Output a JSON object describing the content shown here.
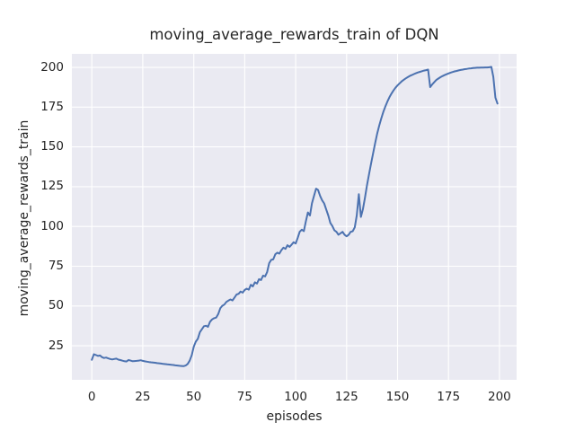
{
  "figure": {
    "background": "#ffffff"
  },
  "chart_data": {
    "type": "line",
    "title": "moving_average_rewards_train of DQN",
    "xlabel": "episodes",
    "ylabel": "moving_average_rewards_train",
    "legend": "none",
    "grid": true,
    "plot_bg": "#eaeaf2",
    "grid_color": "#ffffff",
    "line_color": "#4c72b0",
    "text_color": "#262626",
    "line_width": 2,
    "xlim": [
      -9.8,
      208.4
    ],
    "ylim": [
      3.6,
      208.5
    ],
    "xticks": [
      0,
      25,
      50,
      75,
      100,
      125,
      150,
      175,
      200
    ],
    "yticks": [
      25,
      50,
      75,
      100,
      125,
      150,
      175,
      200
    ],
    "series": [
      {
        "name": "moving_average_rewards_train",
        "points": [
          [
            0,
            16.2
          ],
          [
            1,
            19.7
          ],
          [
            2,
            19.2
          ],
          [
            3,
            18.6
          ],
          [
            4,
            18.9
          ],
          [
            5,
            17.8
          ],
          [
            6,
            17.3
          ],
          [
            7,
            17.6
          ],
          [
            8,
            17.1
          ],
          [
            9,
            16.7
          ],
          [
            10,
            16.4
          ],
          [
            11,
            16.7
          ],
          [
            12,
            16.9
          ],
          [
            13,
            16.3
          ],
          [
            14,
            16.0
          ],
          [
            15,
            15.6
          ],
          [
            16,
            15.3
          ],
          [
            17,
            15.1
          ],
          [
            18,
            16.1
          ],
          [
            19,
            15.7
          ],
          [
            20,
            15.3
          ],
          [
            21,
            15.4
          ],
          [
            22,
            15.5
          ],
          [
            23,
            15.7
          ],
          [
            24,
            15.9
          ],
          [
            25,
            15.5
          ],
          [
            26,
            15.2
          ],
          [
            27,
            15.0
          ],
          [
            28,
            14.8
          ],
          [
            29,
            14.6
          ],
          [
            30,
            14.5
          ],
          [
            31,
            14.3
          ],
          [
            32,
            14.1
          ],
          [
            33,
            14.0
          ],
          [
            34,
            13.8
          ],
          [
            35,
            13.6
          ],
          [
            36,
            13.5
          ],
          [
            37,
            13.3
          ],
          [
            38,
            13.2
          ],
          [
            39,
            13.0
          ],
          [
            40,
            12.9
          ],
          [
            41,
            12.7
          ],
          [
            42,
            12.6
          ],
          [
            43,
            12.4
          ],
          [
            44,
            12.3
          ],
          [
            45,
            12.2
          ],
          [
            46,
            12.6
          ],
          [
            47,
            13.6
          ],
          [
            48,
            15.6
          ],
          [
            49,
            19.0
          ],
          [
            50,
            24.5
          ],
          [
            51,
            27.6
          ],
          [
            52,
            29.4
          ],
          [
            53,
            33.6
          ],
          [
            54,
            35.4
          ],
          [
            55,
            37.3
          ],
          [
            56,
            37.6
          ],
          [
            57,
            36.9
          ],
          [
            58,
            40.1
          ],
          [
            59,
            41.6
          ],
          [
            60,
            42.3
          ],
          [
            61,
            42.7
          ],
          [
            62,
            44.9
          ],
          [
            63,
            48.6
          ],
          [
            64,
            50.1
          ],
          [
            65,
            50.9
          ],
          [
            66,
            52.6
          ],
          [
            67,
            53.4
          ],
          [
            68,
            54.1
          ],
          [
            69,
            53.5
          ],
          [
            70,
            55.3
          ],
          [
            71,
            57.2
          ],
          [
            72,
            57.7
          ],
          [
            73,
            59.1
          ],
          [
            74,
            58.4
          ],
          [
            75,
            60.1
          ],
          [
            76,
            60.9
          ],
          [
            77,
            60.3
          ],
          [
            78,
            63.4
          ],
          [
            79,
            62.3
          ],
          [
            80,
            64.9
          ],
          [
            81,
            64.1
          ],
          [
            82,
            66.9
          ],
          [
            83,
            66.3
          ],
          [
            84,
            69.1
          ],
          [
            85,
            68.6
          ],
          [
            86,
            71.3
          ],
          [
            87,
            76.9
          ],
          [
            88,
            79.0
          ],
          [
            89,
            79.3
          ],
          [
            90,
            82.5
          ],
          [
            91,
            83.5
          ],
          [
            92,
            82.9
          ],
          [
            93,
            85.1
          ],
          [
            94,
            86.7
          ],
          [
            95,
            85.9
          ],
          [
            96,
            88.2
          ],
          [
            97,
            87.2
          ],
          [
            98,
            88.6
          ],
          [
            99,
            90.1
          ],
          [
            100,
            89.3
          ],
          [
            101,
            92.9
          ],
          [
            102,
            96.7
          ],
          [
            103,
            98.0
          ],
          [
            104,
            97.1
          ],
          [
            105,
            103.1
          ],
          [
            106,
            108.8
          ],
          [
            107,
            106.9
          ],
          [
            108,
            114.5
          ],
          [
            109,
            119.2
          ],
          [
            110,
            123.8
          ],
          [
            111,
            122.9
          ],
          [
            112,
            119.2
          ],
          [
            113,
            116.4
          ],
          [
            114,
            114.5
          ],
          [
            115,
            110.7
          ],
          [
            116,
            106.9
          ],
          [
            117,
            102.2
          ],
          [
            118,
            100.3
          ],
          [
            119,
            97.6
          ],
          [
            120,
            96.6
          ],
          [
            121,
            94.8
          ],
          [
            122,
            95.7
          ],
          [
            123,
            96.6
          ],
          [
            124,
            94.8
          ],
          [
            125,
            93.8
          ],
          [
            126,
            94.8
          ],
          [
            127,
            96.6
          ],
          [
            128,
            97.0
          ],
          [
            129,
            99.5
          ],
          [
            130,
            107.0
          ],
          [
            131,
            120.3
          ],
          [
            132,
            106.0
          ],
          [
            133,
            111.0
          ],
          [
            134,
            118.0
          ],
          [
            135,
            126.0
          ],
          [
            136,
            133.0
          ],
          [
            137,
            139.5
          ],
          [
            138,
            146.0
          ],
          [
            139,
            152.5
          ],
          [
            140,
            158.3
          ],
          [
            141,
            163.4
          ],
          [
            142,
            167.9
          ],
          [
            143,
            171.9
          ],
          [
            144,
            175.4
          ],
          [
            145,
            178.5
          ],
          [
            146,
            181.2
          ],
          [
            147,
            183.5
          ],
          [
            148,
            185.5
          ],
          [
            149,
            187.2
          ],
          [
            150,
            188.7
          ],
          [
            151,
            190.0
          ],
          [
            152,
            191.2
          ],
          [
            153,
            192.2
          ],
          [
            154,
            193.1
          ],
          [
            155,
            193.9
          ],
          [
            156,
            194.6
          ],
          [
            157,
            195.2
          ],
          [
            158,
            195.8
          ],
          [
            159,
            196.3
          ],
          [
            160,
            196.8
          ],
          [
            161,
            197.2
          ],
          [
            162,
            197.6
          ],
          [
            163,
            198.0
          ],
          [
            164,
            198.3
          ],
          [
            165,
            198.6
          ],
          [
            166,
            187.6
          ],
          [
            167,
            189.3
          ],
          [
            168,
            190.8
          ],
          [
            169,
            192.1
          ],
          [
            170,
            193.0
          ],
          [
            171,
            193.8
          ],
          [
            172,
            194.5
          ],
          [
            173,
            195.1
          ],
          [
            174,
            195.7
          ],
          [
            175,
            196.2
          ],
          [
            176,
            196.7
          ],
          [
            177,
            197.1
          ],
          [
            178,
            197.5
          ],
          [
            179,
            197.8
          ],
          [
            180,
            198.1
          ],
          [
            181,
            198.4
          ],
          [
            182,
            198.6
          ],
          [
            183,
            198.9
          ],
          [
            184,
            199.1
          ],
          [
            185,
            199.3
          ],
          [
            186,
            199.4
          ],
          [
            187,
            199.6
          ],
          [
            188,
            199.7
          ],
          [
            189,
            199.8
          ],
          [
            190,
            199.8
          ],
          [
            191,
            199.9
          ],
          [
            192,
            199.9
          ],
          [
            193,
            200.0
          ],
          [
            194,
            200.0
          ],
          [
            195,
            200.1
          ],
          [
            196,
            200.3
          ],
          [
            197,
            194.0
          ],
          [
            198,
            181.0
          ],
          [
            199,
            177.3
          ]
        ]
      }
    ]
  }
}
